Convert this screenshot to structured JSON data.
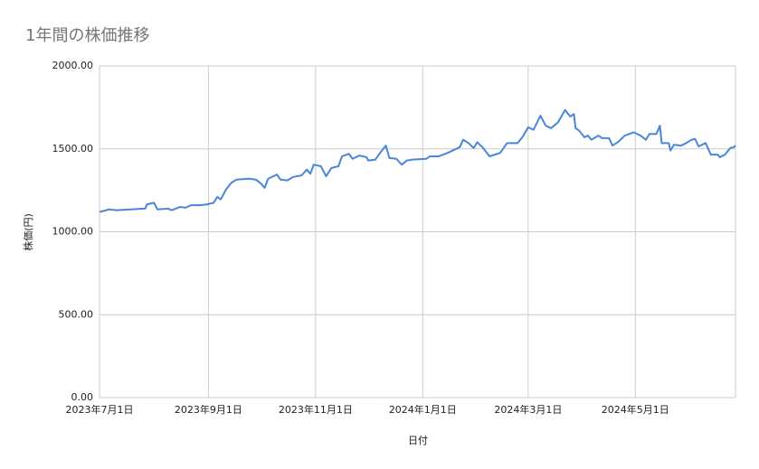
{
  "chart_data": {
    "type": "line",
    "title": "1年間の株価推移",
    "x_label": "日付",
    "y_label": "株価(円)",
    "x": [
      "2023-07-01",
      "2023-07-05",
      "2023-07-06",
      "2023-07-11",
      "2023-07-27",
      "2023-07-28",
      "2023-08-01",
      "2023-08-03",
      "2023-08-09",
      "2023-08-11",
      "2023-08-16",
      "2023-08-19",
      "2023-08-22",
      "2023-08-27",
      "2023-08-31",
      "2023-09-04",
      "2023-09-06",
      "2023-09-08",
      "2023-09-11",
      "2023-09-14",
      "2023-09-17",
      "2023-09-24",
      "2023-09-28",
      "2023-10-01",
      "2023-10-03",
      "2023-10-05",
      "2023-10-10",
      "2023-10-12",
      "2023-10-16",
      "2023-10-19",
      "2023-10-24",
      "2023-10-27",
      "2023-10-29",
      "2023-10-31",
      "2023-11-04",
      "2023-11-07",
      "2023-11-10",
      "2023-11-14",
      "2023-11-16",
      "2023-11-20",
      "2023-11-22",
      "2023-11-26",
      "2023-11-30",
      "2023-12-01",
      "2023-12-05",
      "2023-12-08",
      "2023-12-11",
      "2023-12-13",
      "2023-12-17",
      "2023-12-20",
      "2023-12-23",
      "2023-12-26",
      "2024-01-03",
      "2024-01-05",
      "2024-01-10",
      "2024-01-15",
      "2024-01-22",
      "2024-01-24",
      "2024-01-27",
      "2024-01-30",
      "2024-02-01",
      "2024-02-04",
      "2024-02-08",
      "2024-02-14",
      "2024-02-18",
      "2024-02-24",
      "2024-02-27",
      "2024-03-01",
      "2024-03-04",
      "2024-03-08",
      "2024-03-11",
      "2024-03-14",
      "2024-03-18",
      "2024-03-22",
      "2024-03-25",
      "2024-03-27",
      "2024-03-28",
      "2024-03-30",
      "2024-04-02",
      "2024-04-04",
      "2024-04-06",
      "2024-04-10",
      "2024-04-12",
      "2024-04-16",
      "2024-04-18",
      "2024-04-21",
      "2024-04-25",
      "2024-04-30",
      "2024-05-04",
      "2024-05-07",
      "2024-05-09",
      "2024-05-13",
      "2024-05-15",
      "2024-05-16",
      "2024-05-20",
      "2024-05-21",
      "2024-05-23",
      "2024-05-27",
      "2024-05-30",
      "2024-06-02",
      "2024-06-04",
      "2024-06-06",
      "2024-06-10",
      "2024-06-13",
      "2024-06-17",
      "2024-06-18",
      "2024-06-21",
      "2024-06-24",
      "2024-06-26",
      "2024-06-27"
    ],
    "series": [
      {
        "name": "株価",
        "color": "#4a86d8",
        "values": [
          1120,
          1130,
          1135,
          1130,
          1140,
          1165,
          1175,
          1135,
          1140,
          1130,
          1150,
          1145,
          1160,
          1160,
          1165,
          1175,
          1210,
          1195,
          1255,
          1295,
          1315,
          1320,
          1315,
          1290,
          1265,
          1320,
          1345,
          1315,
          1310,
          1330,
          1340,
          1375,
          1350,
          1405,
          1395,
          1335,
          1385,
          1395,
          1455,
          1470,
          1440,
          1460,
          1450,
          1430,
          1435,
          1480,
          1520,
          1445,
          1440,
          1405,
          1430,
          1435,
          1440,
          1455,
          1455,
          1475,
          1510,
          1555,
          1535,
          1505,
          1540,
          1510,
          1455,
          1475,
          1535,
          1535,
          1575,
          1630,
          1615,
          1700,
          1640,
          1625,
          1660,
          1735,
          1695,
          1710,
          1625,
          1610,
          1570,
          1580,
          1555,
          1580,
          1565,
          1565,
          1520,
          1540,
          1580,
          1600,
          1580,
          1555,
          1590,
          1590,
          1640,
          1535,
          1535,
          1490,
          1525,
          1520,
          1535,
          1555,
          1560,
          1515,
          1535,
          1465,
          1465,
          1450,
          1465,
          1505,
          1510,
          1520
        ]
      }
    ],
    "xlim": [
      "2023-07-01",
      "2024-06-27"
    ],
    "xticks": [
      {
        "value": "2023-07-01",
        "label": "2023年7月1日"
      },
      {
        "value": "2023-09-01",
        "label": "2023年9月1日"
      },
      {
        "value": "2023-11-01",
        "label": "2023年11月1日"
      },
      {
        "value": "2024-01-01",
        "label": "2024年1月1日"
      },
      {
        "value": "2024-03-01",
        "label": "2024年3月1日"
      },
      {
        "value": "2024-05-01",
        "label": "2024年5月1日"
      }
    ],
    "ylim": [
      0,
      2000
    ],
    "yticks": [
      {
        "value": 0,
        "label": "0.00"
      },
      {
        "value": 500,
        "label": "500.00"
      },
      {
        "value": 1000,
        "label": "1000.00"
      },
      {
        "value": 1500,
        "label": "1500.00"
      },
      {
        "value": 2000,
        "label": "2000.00"
      }
    ],
    "grid": true
  }
}
